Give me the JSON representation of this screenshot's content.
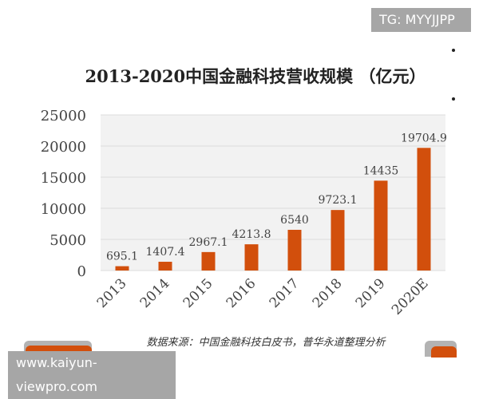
{
  "watermark_top": "TG: MYYJJPP",
  "watermark_bottom": "www.kaiyun-viewpro.com",
  "colors": {
    "bar": "#d24f0c",
    "plot_bg": "#f2f2f2",
    "grid": "#dcdcdc"
  },
  "chart_data": {
    "type": "bar",
    "title": "2013-2020中国金融科技营收规模 （亿元）",
    "categories": [
      "2013",
      "2014",
      "2015",
      "2016",
      "2017",
      "2018",
      "2019",
      "2020E"
    ],
    "values": [
      695.1,
      1407.4,
      2967.1,
      4213.8,
      6540,
      9723.1,
      14435,
      19704.9
    ],
    "value_labels": [
      "695.1",
      "1407.4",
      "2967.1",
      "4213.8",
      "6540",
      "9723.1",
      "14435",
      "19704.9"
    ],
    "yticks": [
      "0",
      "5000",
      "10000",
      "15000",
      "20000",
      "25000"
    ],
    "ylim": [
      0,
      25000
    ],
    "grid": true,
    "source": "数据来源：中国金融科技白皮书，普华永道整理分析"
  }
}
